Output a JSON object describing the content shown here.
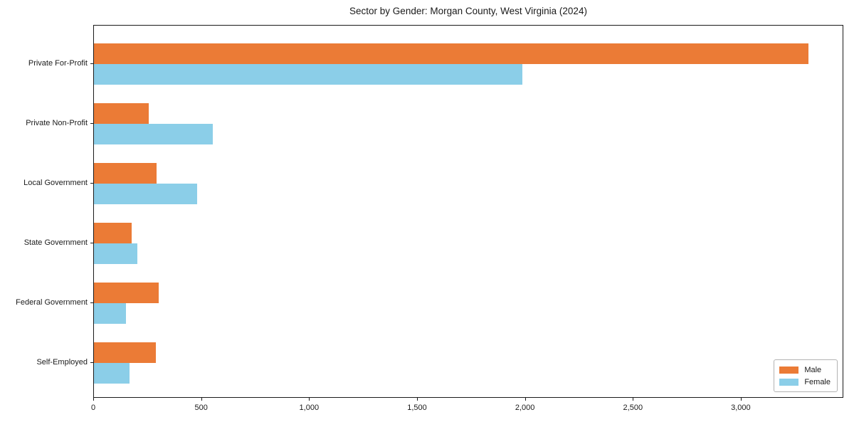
{
  "title": "Sector by Gender: Morgan County, West Virginia (2024)",
  "colors": {
    "male": "#eb7b36",
    "female": "#8bcee8",
    "axis": "#1a1a1a",
    "legend_border": "#b3b3b3",
    "background": "#ffffff"
  },
  "legend": {
    "position": "lower right",
    "items": [
      {
        "label": "Male",
        "color": "#eb7b36"
      },
      {
        "label": "Female",
        "color": "#8bcee8"
      }
    ]
  },
  "chart_data": {
    "type": "bar",
    "orientation": "horizontal",
    "title": "Sector by Gender: Morgan County, West Virginia (2024)",
    "xlabel": "",
    "ylabel": "",
    "categories": [
      "Private For-Profit",
      "Private Non-Profit",
      "Local Government",
      "State Government",
      "Federal Government",
      "Self-Employed"
    ],
    "series": [
      {
        "name": "Male",
        "color": "#eb7b36",
        "values": [
          3310,
          255,
          291,
          175,
          299,
          287
        ]
      },
      {
        "name": "Female",
        "color": "#8bcee8",
        "values": [
          1984,
          551,
          477,
          200,
          148,
          165
        ]
      }
    ],
    "xlim": [
      0,
      3475
    ],
    "xticks": [
      0,
      500,
      1000,
      1500,
      2000,
      2500,
      3000
    ],
    "xtick_labels": [
      "0",
      "500",
      "1,000",
      "1,500",
      "2,000",
      "2,500",
      "3,000"
    ],
    "grid": false,
    "legend_position": "lower right"
  }
}
